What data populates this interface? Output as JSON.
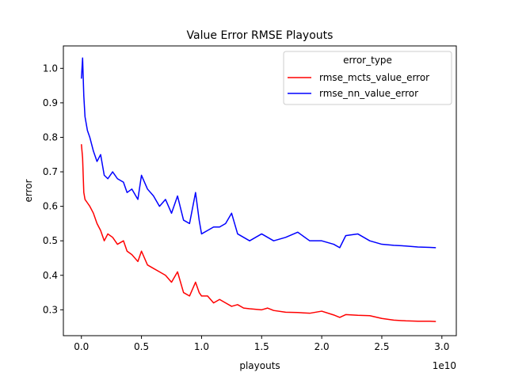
{
  "chart_data": {
    "type": "line",
    "title": "Value Error RMSE Playouts",
    "xlabel": "playouts",
    "ylabel": "error",
    "x_offset_label": "1e10",
    "xlim": [
      -0.15,
      3.12
    ],
    "ylim": [
      0.225,
      1.065
    ],
    "x_ticks": [
      0.0,
      0.5,
      1.0,
      1.5,
      2.0,
      2.5,
      3.0
    ],
    "x_tick_labels": [
      "0.0",
      "0.5",
      "1.0",
      "1.5",
      "2.0",
      "2.5",
      "3.0"
    ],
    "y_ticks": [
      0.3,
      0.4,
      0.5,
      0.6,
      0.7,
      0.8,
      0.9,
      1.0
    ],
    "y_tick_labels": [
      "0.3",
      "0.4",
      "0.5",
      "0.6",
      "0.7",
      "0.8",
      "0.9",
      "1.0"
    ],
    "grid": false,
    "legend": {
      "title": "error_type",
      "position": "top-right"
    },
    "series": [
      {
        "name": "rmse_mcts_value_error",
        "color": "#ff0000",
        "x": [
          0.0,
          0.01,
          0.02,
          0.03,
          0.05,
          0.07,
          0.1,
          0.13,
          0.16,
          0.19,
          0.22,
          0.26,
          0.3,
          0.35,
          0.38,
          0.42,
          0.47,
          0.5,
          0.55,
          0.6,
          0.65,
          0.7,
          0.75,
          0.8,
          0.85,
          0.9,
          0.95,
          0.98,
          1.0,
          1.05,
          1.1,
          1.15,
          1.2,
          1.25,
          1.3,
          1.35,
          1.4,
          1.5,
          1.55,
          1.6,
          1.7,
          1.8,
          1.9,
          2.0,
          2.1,
          2.15,
          2.2,
          2.3,
          2.4,
          2.5,
          2.6,
          2.7,
          2.8,
          2.9,
          2.95
        ],
        "y": [
          0.78,
          0.74,
          0.64,
          0.62,
          0.61,
          0.6,
          0.58,
          0.55,
          0.53,
          0.5,
          0.52,
          0.51,
          0.49,
          0.5,
          0.47,
          0.46,
          0.44,
          0.47,
          0.43,
          0.42,
          0.41,
          0.4,
          0.38,
          0.41,
          0.35,
          0.34,
          0.38,
          0.35,
          0.34,
          0.34,
          0.32,
          0.33,
          0.32,
          0.31,
          0.315,
          0.305,
          0.303,
          0.3,
          0.305,
          0.298,
          0.293,
          0.292,
          0.29,
          0.296,
          0.285,
          0.278,
          0.286,
          0.284,
          0.283,
          0.275,
          0.27,
          0.268,
          0.267,
          0.267,
          0.266
        ]
      },
      {
        "name": "rmse_nn_value_error",
        "color": "#0000ff",
        "x": [
          0.0,
          0.01,
          0.02,
          0.03,
          0.05,
          0.07,
          0.1,
          0.13,
          0.16,
          0.19,
          0.22,
          0.26,
          0.3,
          0.35,
          0.38,
          0.42,
          0.47,
          0.5,
          0.55,
          0.6,
          0.65,
          0.7,
          0.75,
          0.8,
          0.85,
          0.9,
          0.95,
          0.98,
          1.0,
          1.05,
          1.1,
          1.15,
          1.2,
          1.25,
          1.3,
          1.35,
          1.4,
          1.5,
          1.55,
          1.6,
          1.7,
          1.8,
          1.9,
          2.0,
          2.1,
          2.15,
          2.2,
          2.3,
          2.4,
          2.5,
          2.6,
          2.7,
          2.8,
          2.9,
          2.95
        ],
        "y": [
          0.97,
          1.03,
          0.92,
          0.86,
          0.82,
          0.8,
          0.76,
          0.73,
          0.75,
          0.69,
          0.68,
          0.7,
          0.68,
          0.67,
          0.64,
          0.65,
          0.62,
          0.69,
          0.65,
          0.63,
          0.6,
          0.62,
          0.58,
          0.63,
          0.56,
          0.55,
          0.64,
          0.56,
          0.52,
          0.53,
          0.54,
          0.54,
          0.55,
          0.58,
          0.52,
          0.51,
          0.5,
          0.52,
          0.51,
          0.5,
          0.51,
          0.525,
          0.5,
          0.5,
          0.49,
          0.48,
          0.515,
          0.52,
          0.5,
          0.49,
          0.487,
          0.485,
          0.482,
          0.481,
          0.48
        ]
      }
    ]
  }
}
